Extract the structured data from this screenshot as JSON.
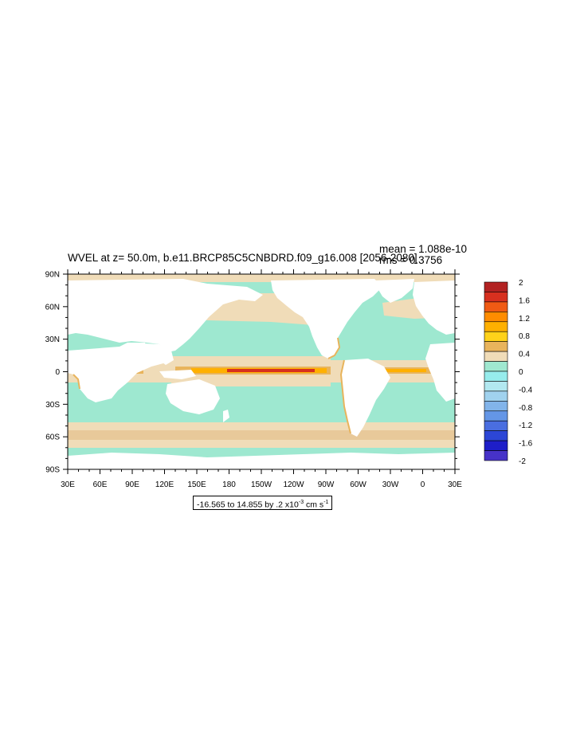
{
  "chart_data": {
    "type": "heatmap",
    "title": "WVEL at z=  50.0m, b.e11.BRCP85C5CNBDRD.f09_g16.008 [2056-2080]",
    "stats": {
      "mean": "mean = 1.088e-10",
      "rms": "rms = 0.3756"
    },
    "range_label": {
      "prefix": "-16.565 to 14.855 by .2 x10",
      "exponent": "-3",
      "units_prefix": " cm s",
      "units_exponent": "-1"
    },
    "x_ticks": [
      {
        "lon": 30,
        "label": "30E"
      },
      {
        "lon": 60,
        "label": "60E"
      },
      {
        "lon": 90,
        "label": "90E"
      },
      {
        "lon": 120,
        "label": "120E"
      },
      {
        "lon": 150,
        "label": "150E"
      },
      {
        "lon": 180,
        "label": "180"
      },
      {
        "lon": 210,
        "label": "150W"
      },
      {
        "lon": 240,
        "label": "120W"
      },
      {
        "lon": 270,
        "label": "90W"
      },
      {
        "lon": 300,
        "label": "60W"
      },
      {
        "lon": 330,
        "label": "30W"
      },
      {
        "lon": 360,
        "label": "0"
      },
      {
        "lon": 390,
        "label": "30E"
      }
    ],
    "y_ticks": [
      {
        "lat": 90,
        "label": "90N"
      },
      {
        "lat": 60,
        "label": "60N"
      },
      {
        "lat": 30,
        "label": "30N"
      },
      {
        "lat": 0,
        "label": "0"
      },
      {
        "lat": -30,
        "label": "30S"
      },
      {
        "lat": -60,
        "label": "60S"
      },
      {
        "lat": -90,
        "label": "90S"
      }
    ],
    "xlim": [
      30,
      390
    ],
    "ylim": [
      -90,
      90
    ],
    "colorbar": {
      "levels": [
        "2",
        "1.6",
        "1.2",
        "0.8",
        "0.4",
        "0",
        "-0.4",
        "-0.8",
        "-1.2",
        "-1.6",
        "-2"
      ],
      "colors": [
        "#b22222",
        "#d7301f",
        "#f05a14",
        "#ff8c00",
        "#ffb000",
        "#ffd21a",
        "#e8b45c",
        "#f0dcb8",
        "#a0e8d0",
        "#96ecec",
        "#b2e8f0",
        "#a0d2ee",
        "#82b4ea",
        "#6496e6",
        "#4a6ee0",
        "#2c46d6",
        "#1e1ec8",
        "#4632c8"
      ]
    },
    "colors": {
      "ocean_neutral": "#9ee8d0",
      "weak_positive": "#f0dcb8",
      "positive": "#e8b45c",
      "strong_positive": "#ff8c00",
      "peak_positive": "#d7301f",
      "negative": "#a0d2ee",
      "land": "#ffffff"
    }
  }
}
